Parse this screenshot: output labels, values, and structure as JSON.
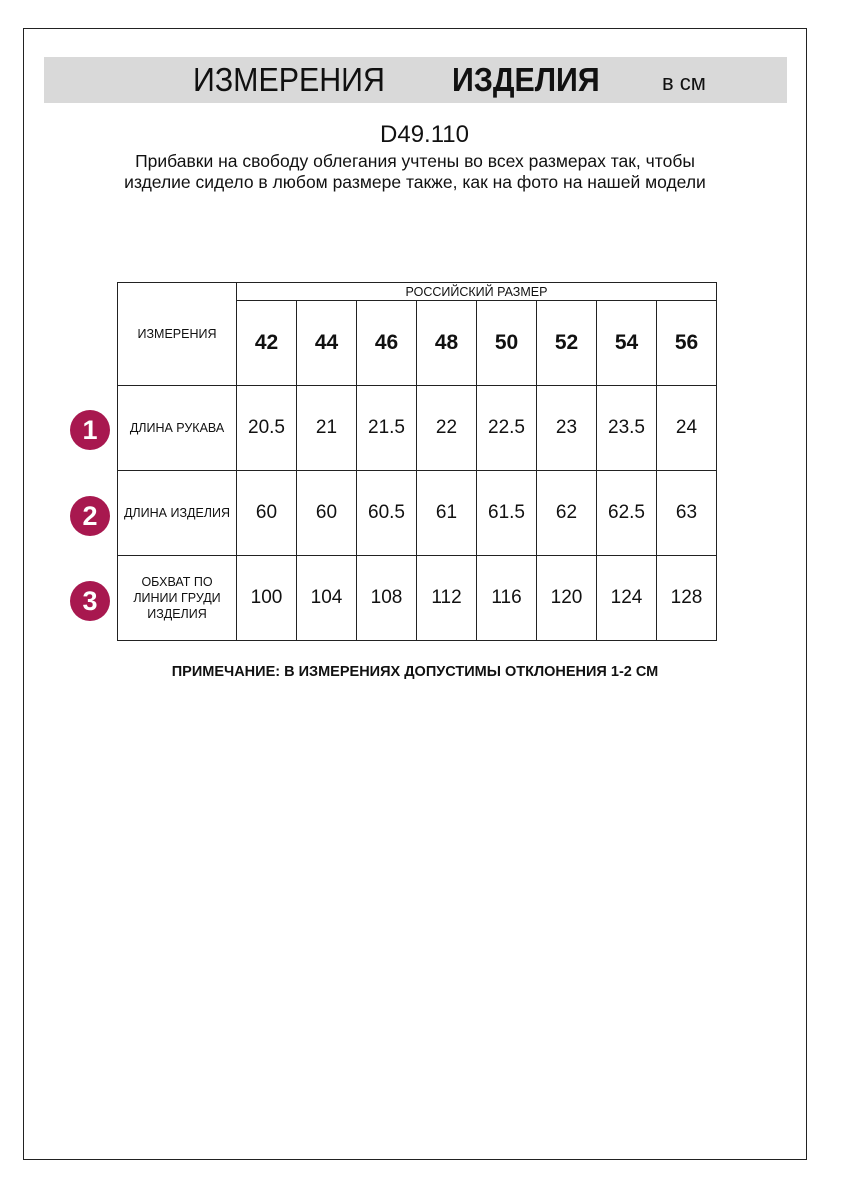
{
  "header": {
    "title_regular": "ИЗМЕРЕНИЯ",
    "title_bold": "ИЗДЕЛИЯ",
    "unit": "в см"
  },
  "product_code": "D49.110",
  "description": "Прибавки на свободу облегания учтены во всех размерах так, чтобы изделие сидело в любом размере также, как на фото на нашей модели",
  "table": {
    "corner_label": "ИЗМЕРЕНИЯ",
    "group_label": "РОССИЙСКИЙ РАЗМЕР",
    "sizes": [
      "42",
      "44",
      "46",
      "48",
      "50",
      "52",
      "54",
      "56"
    ],
    "rows": [
      {
        "number": "1",
        "label": "ДЛИНА РУКАВА",
        "values": [
          "20.5",
          "21",
          "21.5",
          "22",
          "22.5",
          "23",
          "23.5",
          "24"
        ]
      },
      {
        "number": "2",
        "label": "ДЛИНА ИЗДЕЛИЯ",
        "values": [
          "60",
          "60",
          "60.5",
          "61",
          "61.5",
          "62",
          "62.5",
          "63"
        ]
      },
      {
        "number": "3",
        "label": "ОБХВАТ ПО ЛИНИИ ГРУДИ ИЗДЕЛИЯ",
        "values": [
          "100",
          "104",
          "108",
          "112",
          "116",
          "120",
          "124",
          "128"
        ]
      }
    ]
  },
  "note": "ПРИМЕЧАНИЕ: В ИЗМЕРЕНИЯХ ДОПУСТИМЫ ОТКЛОНЕНИЯ 1-2 СМ",
  "colors": {
    "accent": "#a8184f",
    "banner": "#d9d9d9"
  }
}
